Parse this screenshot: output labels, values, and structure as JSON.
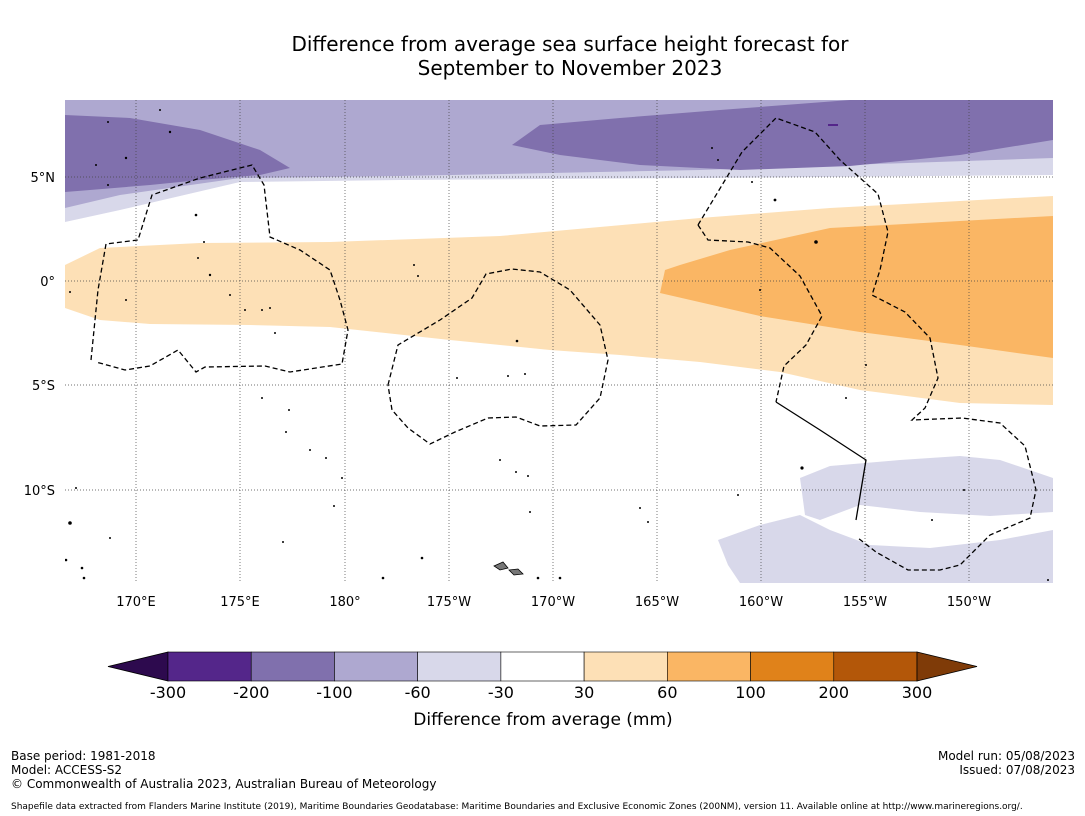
{
  "title": {
    "line1": "Difference from average sea surface height forecast for",
    "line2": "September to November 2023"
  },
  "map": {
    "lon_labels": [
      "170°E",
      "175°E",
      "180°",
      "175°W",
      "170°W",
      "165°W",
      "160°W",
      "155°W",
      "150°W"
    ],
    "lat_labels": [
      "5°N",
      "0°",
      "5°S",
      "10°S"
    ]
  },
  "colorbar": {
    "ticks": [
      "-300",
      "-200",
      "-100",
      "-60",
      "-30",
      "30",
      "60",
      "100",
      "200",
      "300"
    ],
    "colors": [
      "#2d0a4e",
      "#54268a",
      "#8070ad",
      "#aea8d0",
      "#d8d8ea",
      "#ffffff",
      "#fde0b6",
      "#fab664",
      "#e0821a",
      "#b35709",
      "#7f3b08"
    ],
    "label": "Difference from average (mm)"
  },
  "footer": {
    "base_period": "Base period: 1981-2018",
    "model": "Model: ACCESS-S2",
    "copyright": "© Commonwealth of Australia 2023, Australian Bureau of Meteorology",
    "model_run": "Model run: 05/08/2023",
    "issued": "Issued: 07/08/2023",
    "shapefile": "Shapefile data extracted from Flanders Marine Institute (2019), Maritime Boundaries Geodatabase: Maritime Boundaries and Exclusive Economic Zones (200NM), version 11. Available online at http://www.marineregions.org/."
  }
}
